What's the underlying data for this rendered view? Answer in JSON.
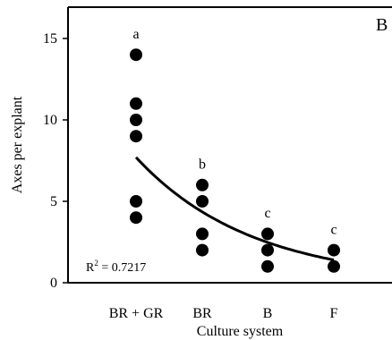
{
  "chart_data": {
    "type": "scatter",
    "panel_label": "B",
    "xlabel": "Culture system",
    "ylabel": "Axes per explant",
    "categories": [
      "BR + GR",
      "BR",
      "B",
      "F"
    ],
    "ylim": [
      0,
      17
    ],
    "yticks": [
      0,
      5,
      10,
      15
    ],
    "grid": false,
    "series": [
      {
        "points": [
          {
            "category": "BR + GR",
            "y": 14
          },
          {
            "category": "BR + GR",
            "y": 11
          },
          {
            "category": "BR + GR",
            "y": 10
          },
          {
            "category": "BR + GR",
            "y": 9
          },
          {
            "category": "BR + GR",
            "y": 5
          },
          {
            "category": "BR + GR",
            "y": 4
          },
          {
            "category": "BR",
            "y": 6
          },
          {
            "category": "BR",
            "y": 5
          },
          {
            "category": "BR",
            "y": 3
          },
          {
            "category": "BR",
            "y": 2
          },
          {
            "category": "B",
            "y": 3
          },
          {
            "category": "B",
            "y": 2
          },
          {
            "category": "B",
            "y": 1
          },
          {
            "category": "F",
            "y": 2
          },
          {
            "category": "F",
            "y": 1
          }
        ]
      }
    ],
    "group_letters": [
      {
        "category": "BR + GR",
        "letter": "a",
        "y": 15
      },
      {
        "category": "BR",
        "letter": "b",
        "y": 7
      },
      {
        "category": "B",
        "letter": "c",
        "y": 4
      },
      {
        "category": "F",
        "letter": "c",
        "y": 3
      }
    ],
    "trendline": {
      "type": "exponential",
      "points": [
        {
          "category": "BR + GR",
          "y": 7.7
        },
        {
          "category": "BR",
          "y": 4.4
        },
        {
          "category": "B",
          "y": 2.5
        },
        {
          "category": "F",
          "y": 1.4
        }
      ]
    },
    "annotation": {
      "r2_prefix": "R",
      "r2_exponent": "2",
      "r2_value": " = 0.7217"
    }
  }
}
